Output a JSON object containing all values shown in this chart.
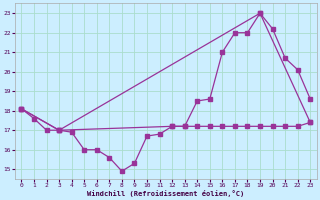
{
  "xlabel": "Windchill (Refroidissement éolien,°C)",
  "bg_color": "#cceeff",
  "grid_color": "#aaddcc",
  "line_color": "#993399",
  "xlim": [
    -0.5,
    23.5
  ],
  "ylim": [
    14.5,
    23.5
  ],
  "yticks": [
    15,
    16,
    17,
    18,
    19,
    20,
    21,
    22,
    23
  ],
  "xticks": [
    0,
    1,
    2,
    3,
    4,
    5,
    6,
    7,
    8,
    9,
    10,
    11,
    12,
    13,
    14,
    15,
    16,
    17,
    18,
    19,
    20,
    21,
    22,
    23
  ],
  "line1_x": [
    0,
    1,
    2,
    3,
    4,
    5,
    6,
    7,
    8,
    9,
    10,
    11,
    12,
    13,
    14,
    15,
    16,
    17,
    18,
    19,
    20,
    21,
    22,
    23
  ],
  "line1_y": [
    18.1,
    17.6,
    17.0,
    17.0,
    16.9,
    16.0,
    16.0,
    15.6,
    14.9,
    15.3,
    16.7,
    16.8,
    17.2,
    17.2,
    18.5,
    18.6,
    21.0,
    22.0,
    22.0,
    23.0,
    22.2,
    20.7,
    20.1,
    18.6
  ],
  "line2_x": [
    0,
    3,
    19,
    23
  ],
  "line2_y": [
    18.1,
    17.0,
    23.0,
    17.4
  ],
  "line3_x": [
    0,
    3,
    12,
    13,
    14,
    15,
    16,
    17,
    18,
    19,
    20,
    21,
    22,
    23
  ],
  "line3_y": [
    18.1,
    17.0,
    17.2,
    17.2,
    17.2,
    17.2,
    17.2,
    17.2,
    17.2,
    17.2,
    17.2,
    17.2,
    17.2,
    17.4
  ]
}
